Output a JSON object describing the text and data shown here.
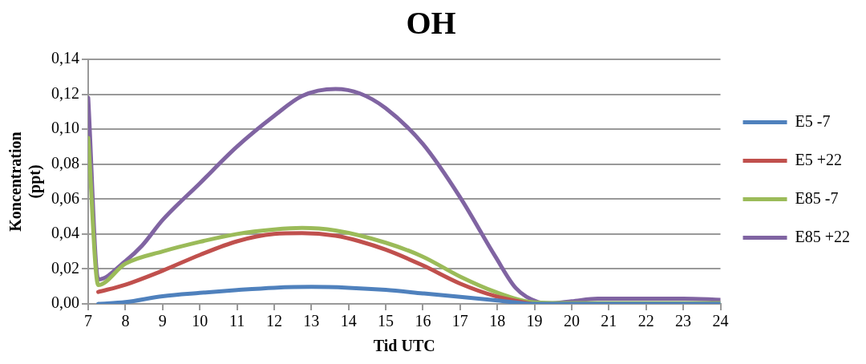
{
  "chart_data": {
    "type": "line",
    "title": "OH",
    "xlabel": "Tid UTC",
    "ylabel": "Koncentration (ppt)",
    "xlim": [
      7,
      24
    ],
    "xticks": [
      7,
      8,
      9,
      10,
      11,
      12,
      13,
      14,
      15,
      16,
      17,
      18,
      19,
      20,
      21,
      22,
      23,
      24
    ],
    "ylim": [
      0,
      0.14
    ],
    "yticks": [
      {
        "value": 0,
        "label": "0,00"
      },
      {
        "value": 0.02,
        "label": "0,02"
      },
      {
        "value": 0.04,
        "label": "0,04"
      },
      {
        "value": 0.06,
        "label": "0,06"
      },
      {
        "value": 0.08,
        "label": "0,08"
      },
      {
        "value": 0.1,
        "label": "0,10"
      },
      {
        "value": 0.12,
        "label": "0,12"
      },
      {
        "value": 0.14,
        "label": "0,14"
      }
    ],
    "grid": "y",
    "legend": "right",
    "marker": "none",
    "line_style": "solid",
    "series": [
      {
        "name": "E5 -7",
        "color": "#4f81bd",
        "x": [
          7.27,
          8,
          9,
          10,
          11,
          12,
          13,
          14,
          15,
          16,
          17,
          18,
          19,
          20,
          21,
          22,
          23,
          24
        ],
        "values": [
          0,
          0.001,
          0.0044,
          0.0063,
          0.0079,
          0.0092,
          0.0097,
          0.0092,
          0.008,
          0.006,
          0.004,
          0.002,
          0,
          0,
          0,
          0,
          0,
          0
        ]
      },
      {
        "name": "E5 +22",
        "color": "#c0504d",
        "x": [
          7.27,
          8,
          9,
          10,
          11,
          12,
          12.75,
          13.65,
          14.3,
          15,
          16,
          17,
          17.95,
          18.9
        ],
        "values": [
          0.0068,
          0.011,
          0.019,
          0.028,
          0.0358,
          0.04,
          0.0405,
          0.039,
          0.0358,
          0.031,
          0.022,
          0.0116,
          0.0044,
          0
        ]
      },
      {
        "name": "E85 -7",
        "color": "#9bbb59",
        "x": [
          7,
          7.27,
          8,
          9,
          10,
          11,
          12,
          12.75,
          13.65,
          15,
          16,
          17,
          17.95,
          18.9,
          19.5,
          20,
          21,
          22,
          23,
          24
        ],
        "values": [
          0.095,
          0.0108,
          0.023,
          0.03,
          0.0355,
          0.04,
          0.0426,
          0.0435,
          0.042,
          0.035,
          0.027,
          0.0156,
          0.0068,
          0.001,
          0.0005,
          0.0005,
          0.0005,
          0.0005,
          0.0005,
          0.0005
        ]
      },
      {
        "name": "E85 +22",
        "color": "#8064a2",
        "x": [
          7,
          7.27,
          8,
          8.45,
          9,
          10,
          11,
          12,
          12.75,
          13.65,
          14.3,
          15,
          16,
          17,
          17.95,
          18.5,
          19.1,
          19.4,
          20,
          20.7,
          22,
          23,
          24
        ],
        "values": [
          0.118,
          0.014,
          0.0245,
          0.0334,
          0.048,
          0.069,
          0.09,
          0.1076,
          0.119,
          0.123,
          0.1205,
          0.112,
          0.0915,
          0.061,
          0.027,
          0.009,
          0.001,
          0.0003,
          0.0015,
          0.003,
          0.003,
          0.003,
          0.0023
        ]
      }
    ]
  }
}
